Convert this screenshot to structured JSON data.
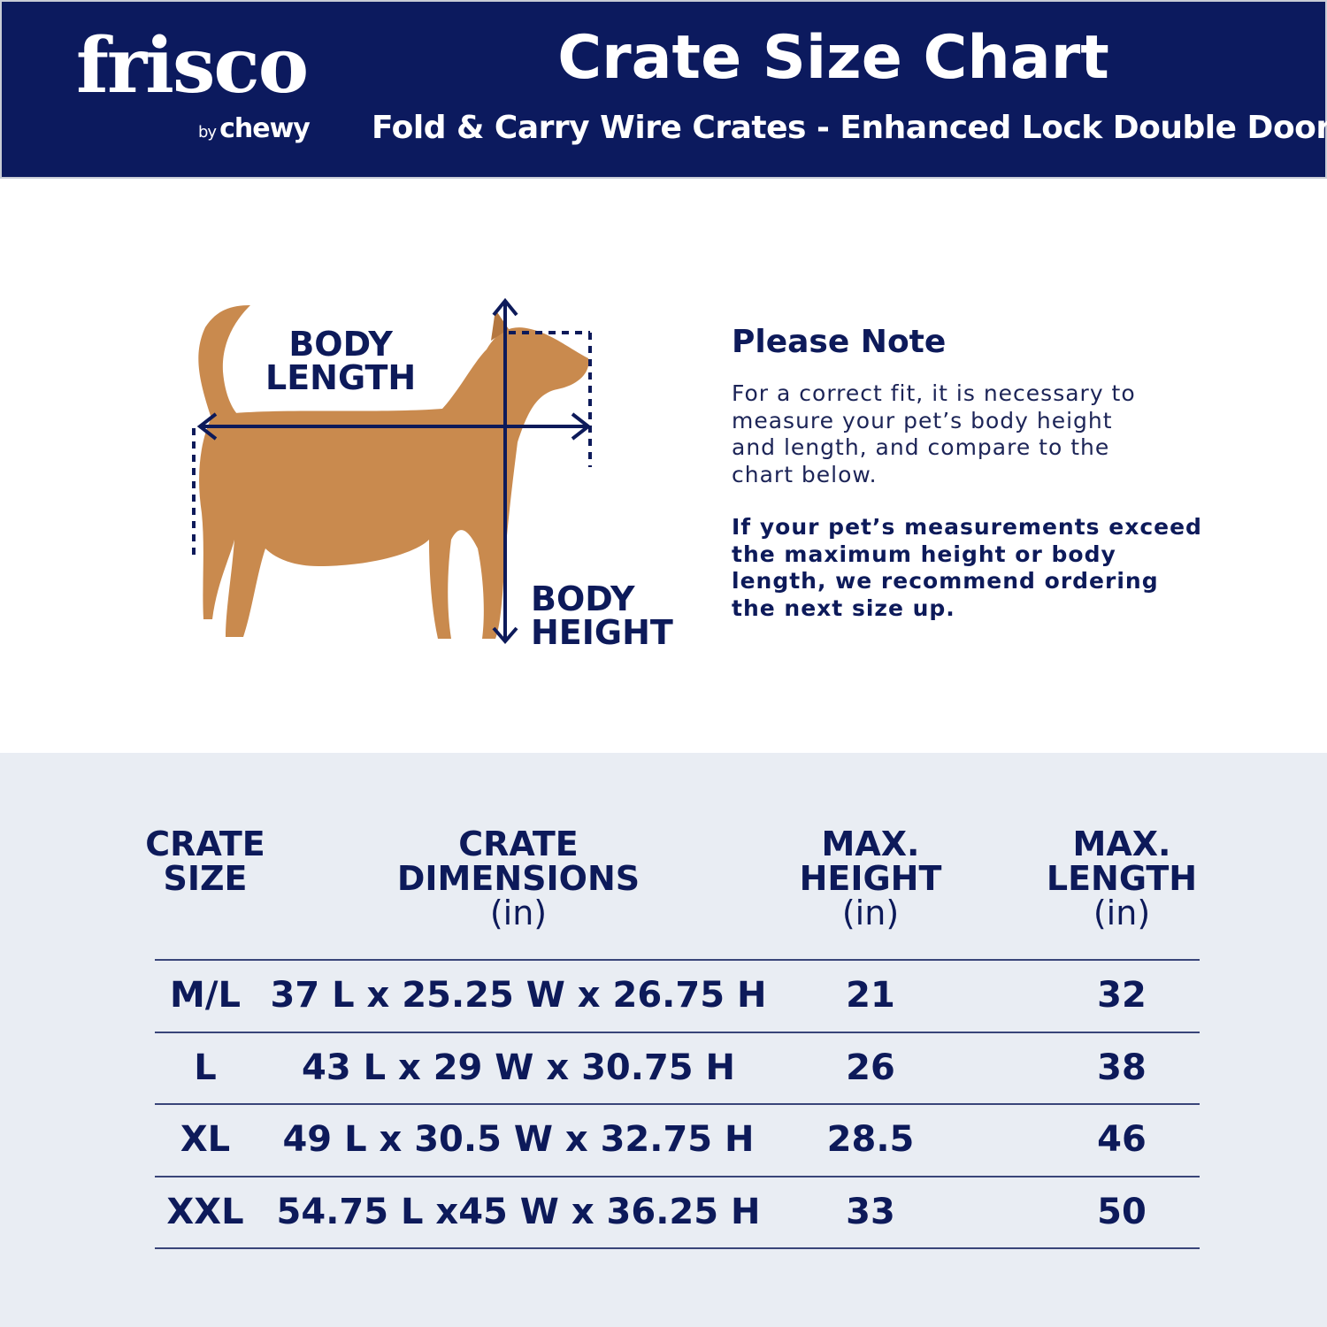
{
  "header": {
    "logo_text": "frisco",
    "logo_by": "by",
    "logo_brand": "chewy",
    "title": "Crate Size Chart",
    "subtitle": "Fold & Carry Wire Crates - Enhanced Lock Double Door"
  },
  "diagram": {
    "body_length_label": "BODY\nLENGTH",
    "body_height_label": "BODY\nHEIGHT"
  },
  "note": {
    "title": "Please Note",
    "body": "For a correct fit, it is necessary to\nmeasure your pet’s body height\nand length, and compare to the\nchart below.",
    "bold": "If your pet’s measurements exceed\nthe maximum height or body\nlength, we recommend ordering\nthe next size up."
  },
  "table": {
    "headers": [
      {
        "label": "CRATE\nSIZE",
        "unit": ""
      },
      {
        "label": "CRATE\nDIMENSIONS",
        "unit": "(in)"
      },
      {
        "label": "MAX.\nHEIGHT",
        "unit": "(in)"
      },
      {
        "label": "MAX.\nLENGTH",
        "unit": "(in)"
      }
    ],
    "rows": [
      [
        "M/L",
        "37 L x 25.25 W x 26.75 H",
        "21",
        "32"
      ],
      [
        "L",
        "43 L x 29 W x 30.75 H",
        "26",
        "38"
      ],
      [
        "XL",
        "49 L x 30.5 W x 32.75 H",
        "28.5",
        "46"
      ],
      [
        "XXL",
        "54.75 L x45 W x 36.25 H",
        "33",
        "50"
      ]
    ]
  },
  "colors": {
    "navy": "#0c1a5e",
    "table_bg": "#e9edf3",
    "dog": "#c98a4e"
  }
}
